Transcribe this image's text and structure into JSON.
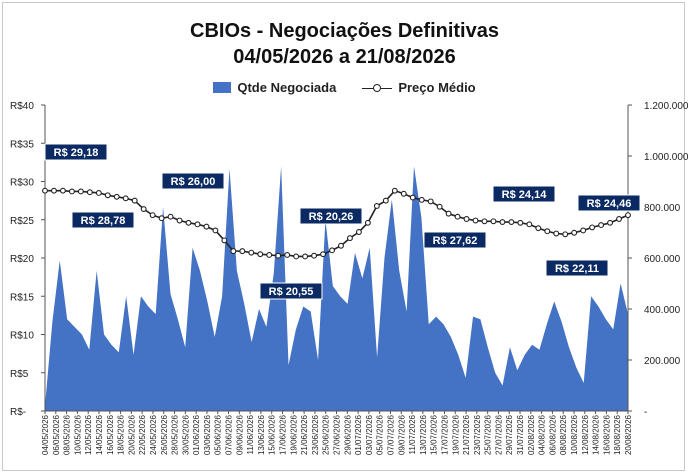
{
  "chart_data": {
    "type": "area+line",
    "title_line1": "CBIOs - Negociações Definitivas",
    "title_line2": "04/05/2026 a 21/08/2026",
    "grid": false,
    "legend_position": "top",
    "series": [
      {
        "name": "Qtde Negociada",
        "kind": "area",
        "axis": "right",
        "color": "#4472C4"
      },
      {
        "name": "Preço Médio",
        "kind": "line",
        "axis": "left",
        "color": "#222222"
      }
    ],
    "left_axis": {
      "ylim": [
        0,
        40
      ],
      "ticks": [
        0,
        5,
        10,
        15,
        20,
        25,
        30,
        35,
        40
      ],
      "tick_labels": [
        "R$-",
        "R$5",
        "R$10",
        "R$15",
        "R$20",
        "R$25",
        "R$30",
        "R$35",
        "R$40"
      ]
    },
    "right_axis": {
      "ylim": [
        0,
        1200000
      ],
      "ticks": [
        0,
        200000,
        400000,
        600000,
        800000,
        1000000,
        1200000
      ],
      "tick_labels": [
        "-",
        "200.000",
        "400.000",
        "600.000",
        "800.000",
        "1.000.000",
        "1.200.000"
      ]
    },
    "x_tick_labels": [
      "04/05/2026",
      "06/05/2026",
      "08/05/2026",
      "10/05/2026",
      "12/05/2026",
      "14/05/2026",
      "16/05/2026",
      "18/05/2026",
      "20/05/2026",
      "22/05/2026",
      "24/05/2026",
      "26/05/2026",
      "28/05/2026",
      "30/05/2026",
      "01/06/2026",
      "03/06/2026",
      "05/06/2026",
      "07/06/2026",
      "09/06/2026",
      "11/06/2026",
      "13/06/2026",
      "15/06/2026",
      "17/06/2026",
      "19/06/2026",
      "21/06/2026",
      "23/06/2026",
      "25/06/2026",
      "27/06/2026",
      "29/06/2026",
      "01/07/2026",
      "03/07/2026",
      "05/07/2026",
      "07/07/2026",
      "09/07/2026",
      "11/07/2026",
      "13/07/2026",
      "15/07/2026",
      "17/07/2026",
      "19/07/2026",
      "21/07/2026",
      "23/07/2026",
      "25/07/2026",
      "27/07/2026",
      "29/07/2026",
      "31/07/2026",
      "02/08/2026",
      "04/08/2026",
      "06/08/2026",
      "08/08/2026",
      "10/08/2026",
      "12/08/2026",
      "14/08/2026",
      "16/08/2026",
      "18/08/2026",
      "20/08/2026"
    ],
    "quantity": [
      0.02,
      0.35,
      0.59,
      0.36,
      0.33,
      0.3,
      0.24,
      0.55,
      0.3,
      0.26,
      0.23,
      0.45,
      0.22,
      0.45,
      0.41,
      0.38,
      0.8,
      0.46,
      0.36,
      0.25,
      0.64,
      0.55,
      0.43,
      0.29,
      0.45,
      0.95,
      0.55,
      0.42,
      0.27,
      0.4,
      0.33,
      0.54,
      0.96,
      0.18,
      0.32,
      0.41,
      0.39,
      0.2,
      0.75,
      0.49,
      0.45,
      0.42,
      0.62,
      0.52,
      0.64,
      0.21,
      0.6,
      0.83,
      0.55,
      0.39,
      0.96,
      0.76,
      0.34,
      0.37,
      0.34,
      0.29,
      0.22,
      0.13,
      0.37,
      0.36,
      0.25,
      0.15,
      0.1,
      0.25,
      0.16,
      0.22,
      0.26,
      0.24,
      0.34,
      0.43,
      0.35,
      0.25,
      0.17,
      0.11,
      0.45,
      0.41,
      0.36,
      0.32,
      0.5,
      0.38
    ],
    "quantity_scale": 1000000,
    "price": [
      28.8,
      28.8,
      28.8,
      28.7,
      28.7,
      28.6,
      28.5,
      28.2,
      28.0,
      27.8,
      27.5,
      26.4,
      25.6,
      25.2,
      25.4,
      24.9,
      24.6,
      24.4,
      24.1,
      23.6,
      22.3,
      20.9,
      20.9,
      20.7,
      20.5,
      20.4,
      20.3,
      20.4,
      20.2,
      20.2,
      20.3,
      20.5,
      21.0,
      21.6,
      22.6,
      23.4,
      24.6,
      26.8,
      27.5,
      28.8,
      28.4,
      27.9,
      27.6,
      27.4,
      26.7,
      25.8,
      25.4,
      25.1,
      24.9,
      24.8,
      24.8,
      24.7,
      24.7,
      24.6,
      24.4,
      23.9,
      23.5,
      23.2,
      23.1,
      23.3,
      23.6,
      24.0,
      24.3,
      24.6,
      25.1,
      25.6
    ],
    "annotations": [
      {
        "text": "R$ 29,18",
        "value": 29.18
      },
      {
        "text": "R$ 28,78",
        "value": 28.78
      },
      {
        "text": "R$ 26,00",
        "value": 26.0
      },
      {
        "text": "R$ 20,55",
        "value": 20.55
      },
      {
        "text": "R$ 20,26",
        "value": 20.26
      },
      {
        "text": "R$ 27,62",
        "value": 27.62
      },
      {
        "text": "R$ 24,14",
        "value": 24.14
      },
      {
        "text": "R$ 22,11",
        "value": 22.11
      },
      {
        "text": "R$ 24,46",
        "value": 24.46
      }
    ]
  }
}
